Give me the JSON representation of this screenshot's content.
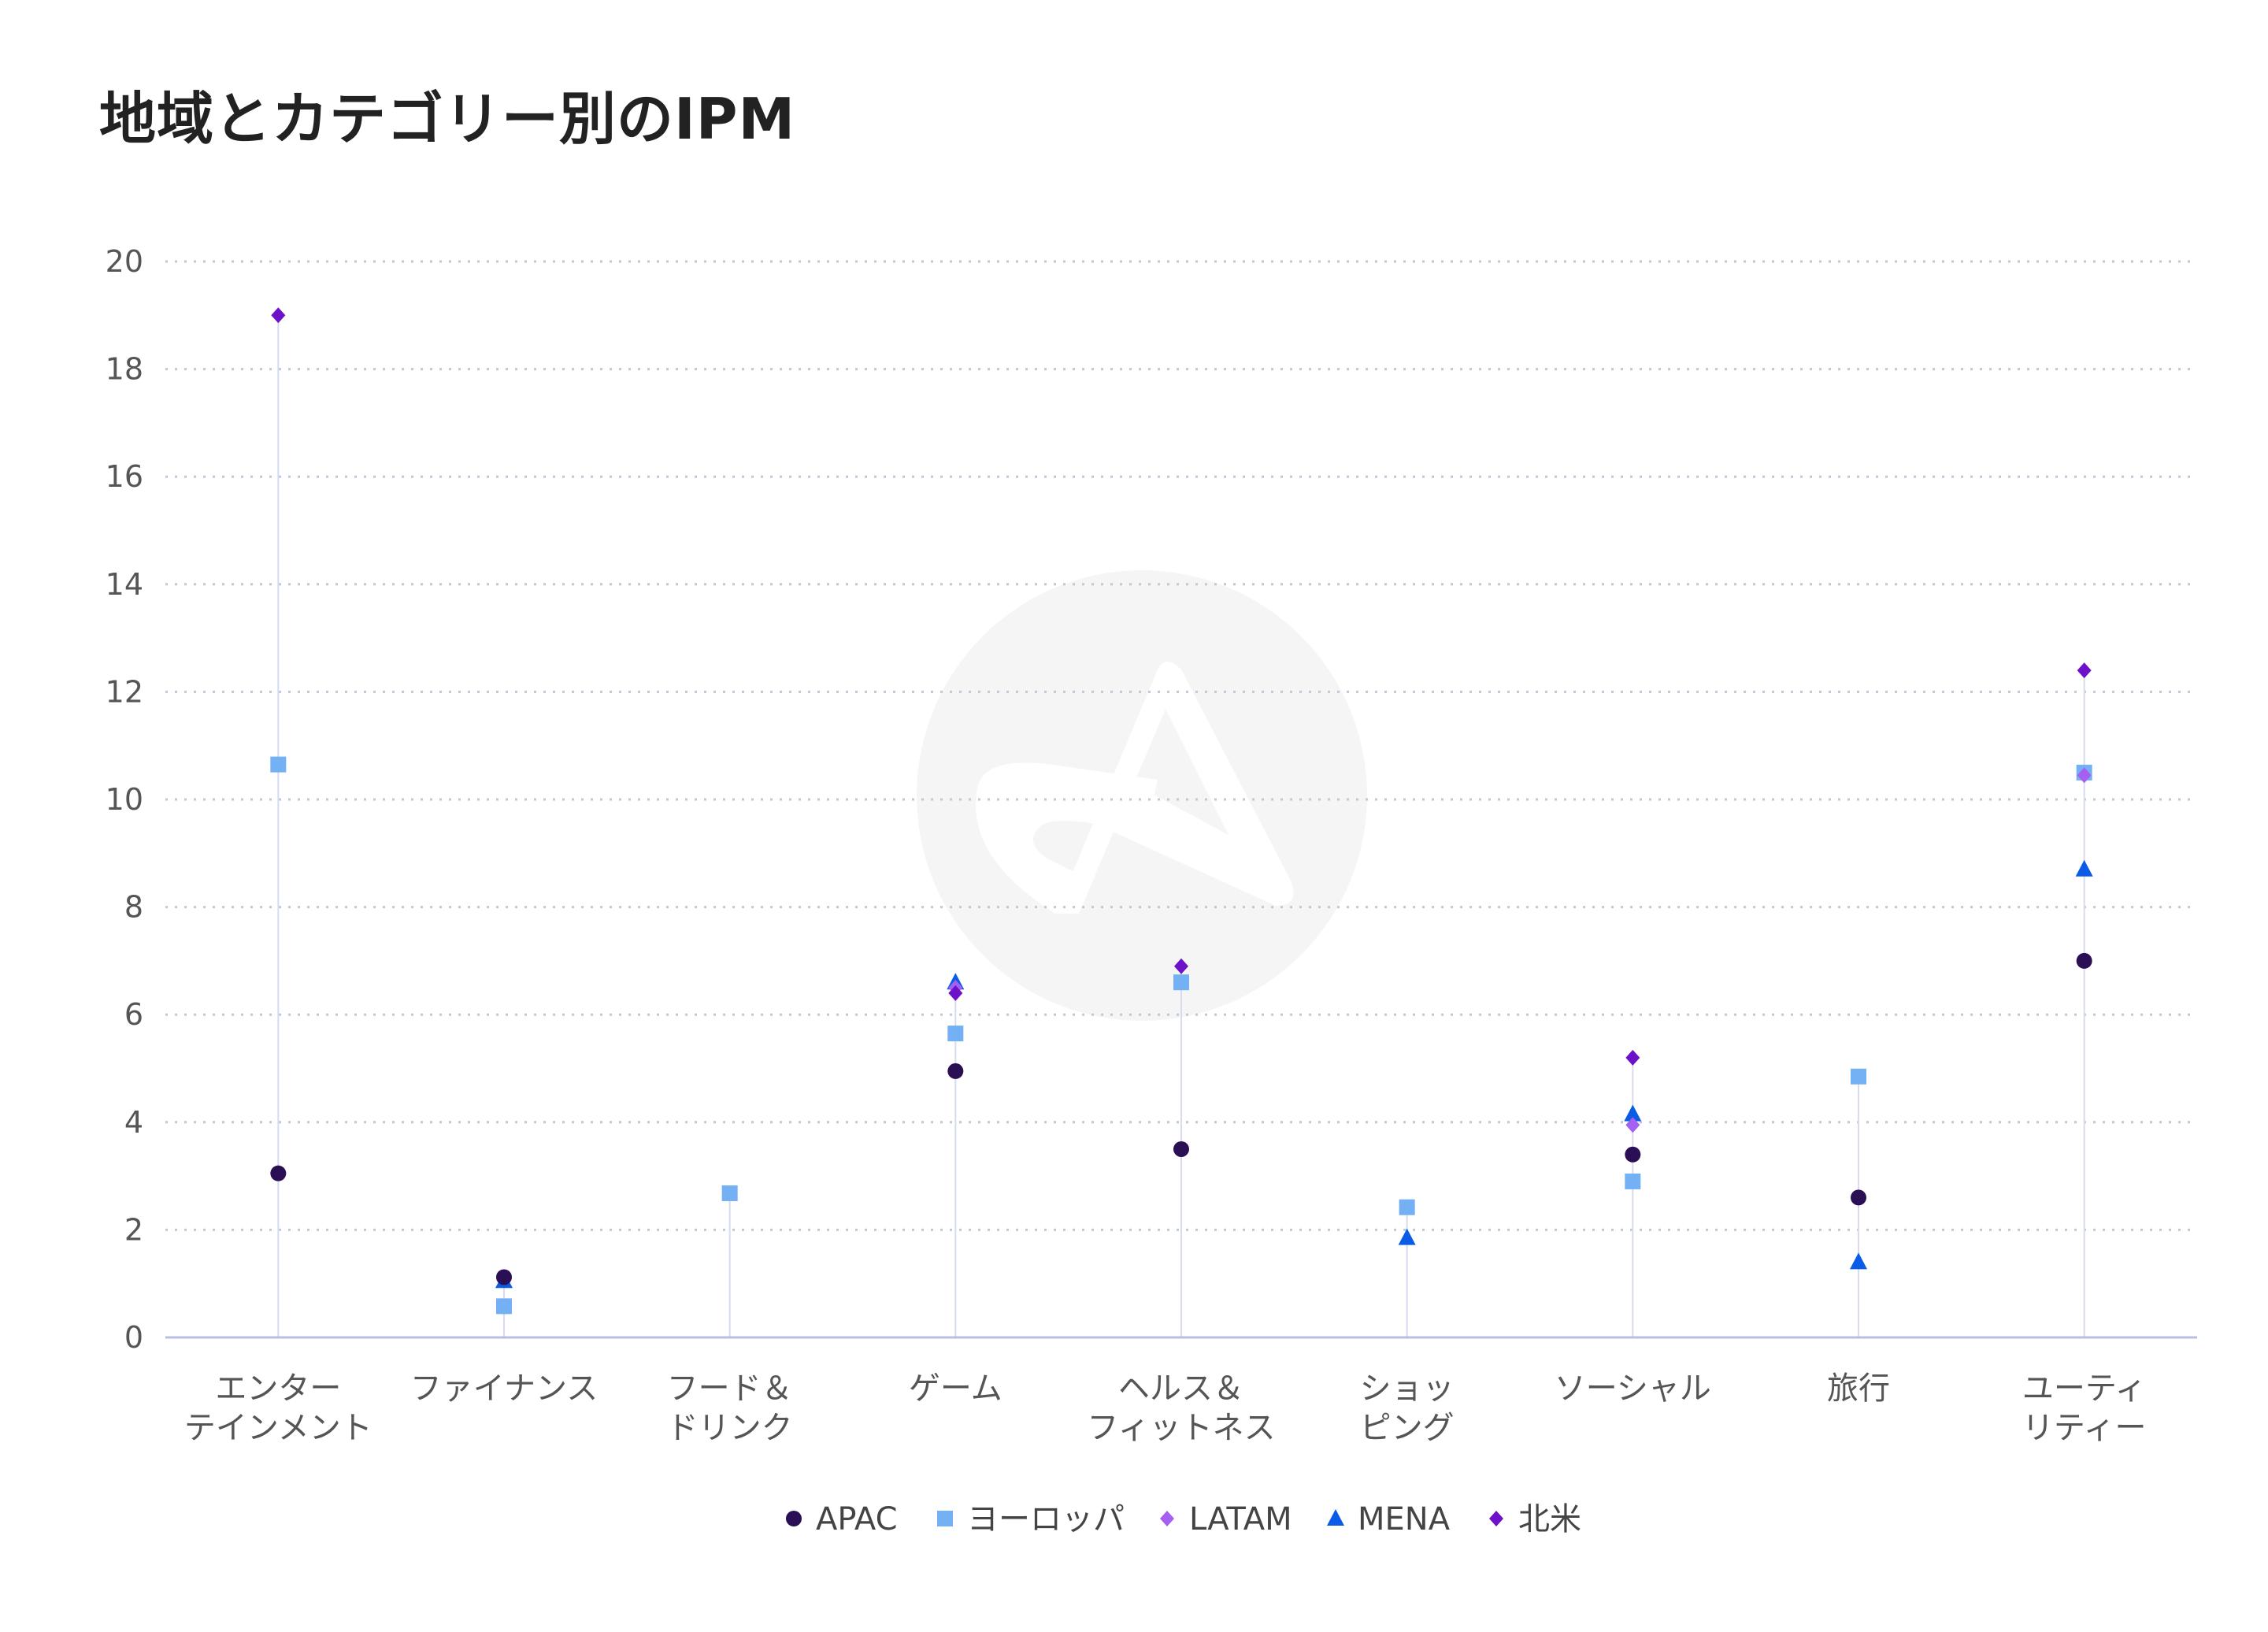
{
  "chart_data": {
    "type": "scatter",
    "title": "地域とカテゴリー別のIPM",
    "xlabel": "",
    "ylabel": "",
    "ylim": [
      0,
      20
    ],
    "yticks": [
      0,
      2,
      4,
      6,
      8,
      10,
      12,
      14,
      16,
      18,
      20
    ],
    "grid": true,
    "legend_position": "bottom",
    "categories": [
      [
        "エンター",
        "テインメント"
      ],
      [
        "ファイナンス"
      ],
      [
        "フード＆",
        "ドリンク"
      ],
      [
        "ゲーム"
      ],
      [
        "ヘルス＆",
        "フィットネス"
      ],
      [
        "ショッ",
        "ピング"
      ],
      [
        "ソーシャル"
      ],
      [
        "旅行"
      ],
      [
        "ユーティ",
        "リティー"
      ]
    ],
    "series": [
      {
        "name": "APAC",
        "marker": "circle",
        "color": "#2b0f55",
        "values": [
          3.05,
          1.12,
          null,
          4.95,
          3.5,
          null,
          3.4,
          2.6,
          7.0
        ]
      },
      {
        "name": "ヨーロッパ",
        "marker": "square",
        "color": "#74b0f4",
        "values": [
          10.65,
          0.58,
          2.68,
          5.65,
          6.6,
          2.42,
          2.9,
          4.85,
          10.5
        ]
      },
      {
        "name": "LATAM",
        "marker": "diamond",
        "color": "#a560f2",
        "values": [
          null,
          null,
          null,
          6.5,
          null,
          null,
          3.95,
          null,
          10.45
        ]
      },
      {
        "name": "MENA",
        "marker": "triangle",
        "color": "#0a5ce6",
        "values": [
          null,
          1.05,
          null,
          6.6,
          null,
          1.85,
          4.15,
          1.4,
          8.7
        ]
      },
      {
        "name": "北米",
        "marker": "diamond",
        "color": "#6e12c9",
        "values": [
          19.0,
          null,
          null,
          6.4,
          6.9,
          null,
          5.2,
          null,
          12.4
        ]
      }
    ]
  }
}
